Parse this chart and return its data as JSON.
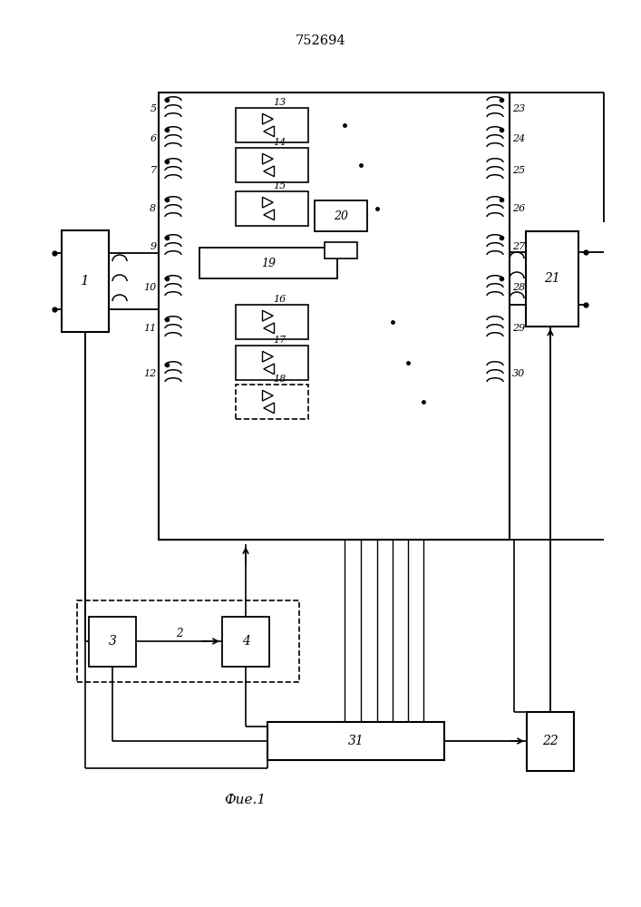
{
  "title": "752694",
  "fig_label": "Фие.1",
  "bg_color": "#ffffff",
  "line_color": "#000000"
}
